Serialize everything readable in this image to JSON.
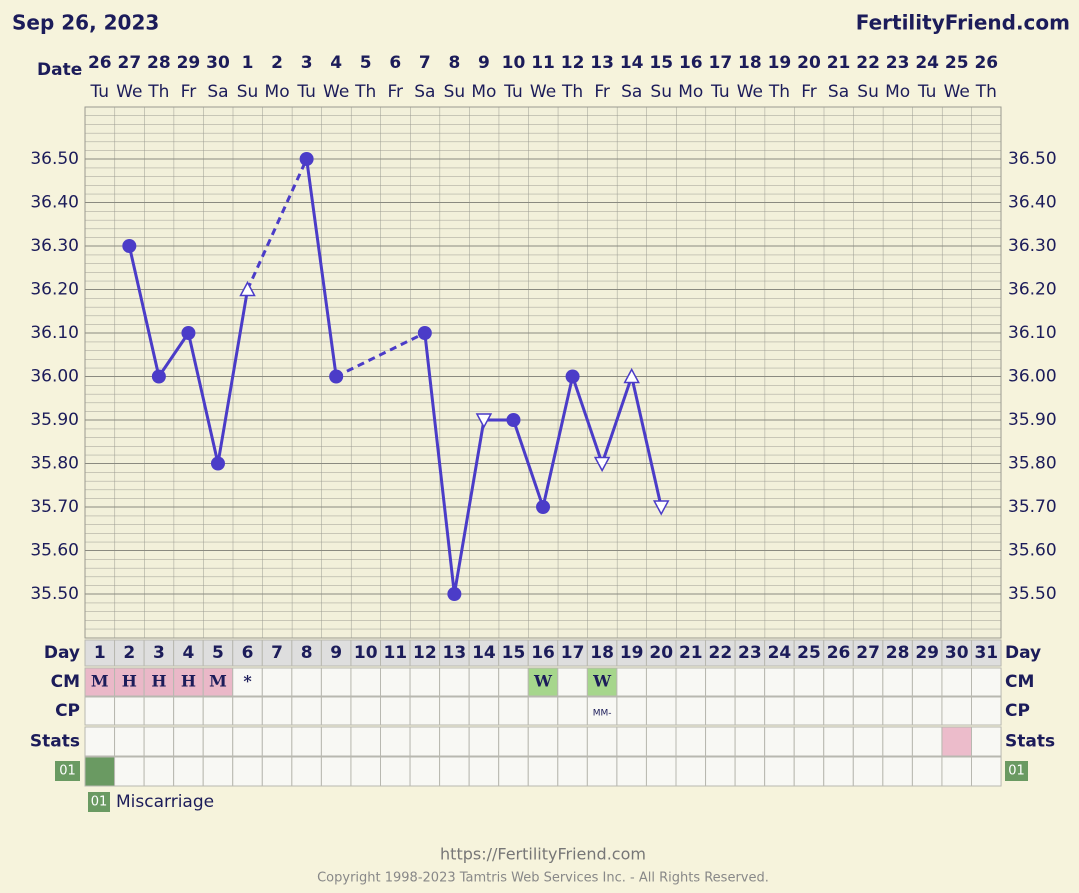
{
  "header": {
    "date": "Sep 26, 2023",
    "site": "FertilityFriend.com"
  },
  "chart_data": {
    "type": "line",
    "date_label": "Date",
    "categories": [
      "26",
      "27",
      "28",
      "29",
      "30",
      "1",
      "2",
      "3",
      "4",
      "5",
      "6",
      "7",
      "8",
      "9",
      "10",
      "11",
      "12",
      "13",
      "14",
      "15",
      "16",
      "17",
      "18",
      "19",
      "20",
      "21",
      "22",
      "23",
      "24",
      "25",
      "26"
    ],
    "weekdays": [
      "Tu",
      "We",
      "Th",
      "Fr",
      "Sa",
      "Su",
      "Mo",
      "Tu",
      "We",
      "Th",
      "Fr",
      "Sa",
      "Su",
      "Mo",
      "Tu",
      "We",
      "Th",
      "Fr",
      "Sa",
      "Su",
      "Mo",
      "Tu",
      "We",
      "Th",
      "Fr",
      "Sa",
      "Su",
      "Mo",
      "Tu",
      "We",
      "Th"
    ],
    "series": [
      {
        "color": "#4b3cc8",
        "values": [
          null,
          36.3,
          36.0,
          36.1,
          35.8,
          36.2,
          null,
          36.5,
          36.0,
          null,
          null,
          36.1,
          35.5,
          35.9,
          35.9,
          35.7,
          36.0,
          35.8,
          36.0,
          35.7,
          null,
          null,
          null,
          null,
          null,
          null,
          null,
          null,
          null,
          null,
          null
        ],
        "markers": [
          null,
          "circle",
          "circle",
          "circle",
          "circle",
          "triangle-up",
          null,
          "circle",
          "circle",
          null,
          null,
          "circle",
          "circle",
          "triangle-down",
          "circle",
          "circle",
          "circle",
          "triangle-down",
          "triangle-up",
          "triangle-down",
          null,
          null,
          null,
          null,
          null,
          null,
          null,
          null,
          null,
          null,
          null
        ]
      }
    ],
    "ylim": [
      35.4,
      36.6
    ],
    "yticks": [
      {
        "value": 35.5,
        "label": "35.50"
      },
      {
        "value": 35.6,
        "label": "35.60"
      },
      {
        "value": 35.7,
        "label": "35.70"
      },
      {
        "value": 35.8,
        "label": "35.80"
      },
      {
        "value": 35.9,
        "label": "35.90"
      },
      {
        "value": 36.0,
        "label": "36.00"
      },
      {
        "value": 36.1,
        "label": "36.10"
      },
      {
        "value": 36.2,
        "label": "36.20"
      },
      {
        "value": 36.3,
        "label": "36.30"
      },
      {
        "value": 36.4,
        "label": "36.40"
      },
      {
        "value": 36.5,
        "label": "36.50"
      }
    ],
    "grid": true
  },
  "table": {
    "row_labels": [
      "Day",
      "CM",
      "CP",
      "Stats"
    ],
    "days": [
      1,
      2,
      3,
      4,
      5,
      6,
      7,
      8,
      9,
      10,
      11,
      12,
      13,
      14,
      15,
      16,
      17,
      18,
      19,
      20,
      21,
      22,
      23,
      24,
      25,
      26,
      27,
      28,
      29,
      30,
      31
    ],
    "cm": [
      "M",
      "H",
      "H",
      "H",
      "M",
      "*",
      null,
      null,
      null,
      null,
      null,
      null,
      null,
      null,
      null,
      "W",
      null,
      "W",
      null,
      null,
      null,
      null,
      null,
      null,
      null,
      null,
      null,
      null,
      null,
      null,
      null
    ],
    "cm_colors": [
      "#eab8c8",
      "#eab8c8",
      "#eab8c8",
      "#eab8c8",
      "#eab8c8",
      null,
      null,
      null,
      null,
      null,
      null,
      null,
      null,
      null,
      null,
      "#a6d68c",
      null,
      "#a6d68c",
      null,
      null,
      null,
      null,
      null,
      null,
      null,
      null,
      null,
      null,
      null,
      null,
      null
    ],
    "cp": [
      null,
      null,
      null,
      null,
      null,
      null,
      null,
      null,
      null,
      null,
      null,
      null,
      null,
      null,
      null,
      null,
      null,
      "MM-",
      null,
      null,
      null,
      null,
      null,
      null,
      null,
      null,
      null,
      null,
      null,
      null,
      null
    ],
    "stats_colors": [
      null,
      null,
      null,
      null,
      null,
      null,
      null,
      null,
      null,
      null,
      null,
      null,
      null,
      null,
      null,
      null,
      null,
      null,
      null,
      null,
      null,
      null,
      null,
      null,
      null,
      null,
      null,
      null,
      null,
      "#ecbccb",
      null
    ],
    "event_row": {
      "label": "01",
      "color": "#6a9a62",
      "cells": [
        "#6a9a62",
        null,
        null,
        null,
        null,
        null,
        null,
        null,
        null,
        null,
        null,
        null,
        null,
        null,
        null,
        null,
        null,
        null,
        null,
        null,
        null,
        null,
        null,
        null,
        null,
        null,
        null,
        null,
        null,
        null,
        null
      ]
    }
  },
  "legend": {
    "code": "01",
    "text": "Miscarriage",
    "color": "#6a9a62"
  },
  "footer": {
    "url": "https://FertilityFriend.com",
    "copyright": "Copyright 1998-2023 Tamtris Web Services Inc. - All Rights Reserved."
  }
}
